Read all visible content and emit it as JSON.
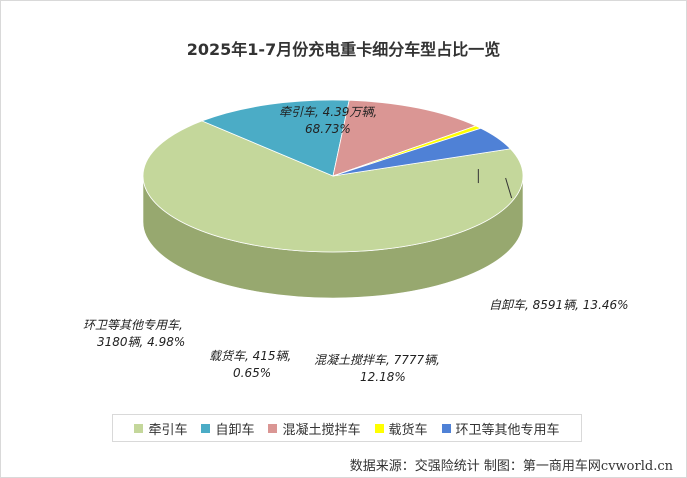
{
  "chart_data": {
    "type": "pie",
    "title": "2025年1-7月份充电重卡细分车型占比一览",
    "series": [
      {
        "name": "牵引车",
        "value": 68.73,
        "color": "#c4d79b",
        "side_color": "#97a86f",
        "label_line1": "牵引车, 4.39万辆,",
        "label_line2": "68.73%"
      },
      {
        "name": "自卸车",
        "value": 13.46,
        "color": "#4bacc6",
        "side_color": "#1f4e5e",
        "label_line1": "自卸车, 8591辆, 13.46%",
        "label_line2": ""
      },
      {
        "name": "混凝土搅拌车",
        "value": 12.18,
        "color": "#da9694",
        "side_color": "#5e3a39",
        "label_line1": "混凝土搅拌车, 7777辆,",
        "label_line2": "12.18%"
      },
      {
        "name": "载货车",
        "value": 0.65,
        "color": "#ffff00",
        "side_color": "#b3b300",
        "label_line1": "载货车, 415辆,",
        "label_line2": "0.65%"
      },
      {
        "name": "环卫等其他专用车",
        "value": 4.98,
        "color": "#4f81d6",
        "side_color": "#2b4c80",
        "label_line1": "环卫等其他专用车,",
        "label_line2": "3180辆, 4.98%"
      }
    ],
    "legend_placement": "bottom"
  },
  "footer": {
    "source_text": "数据来源：交强险统计  制图：第一商用车网cvworld.cn"
  }
}
